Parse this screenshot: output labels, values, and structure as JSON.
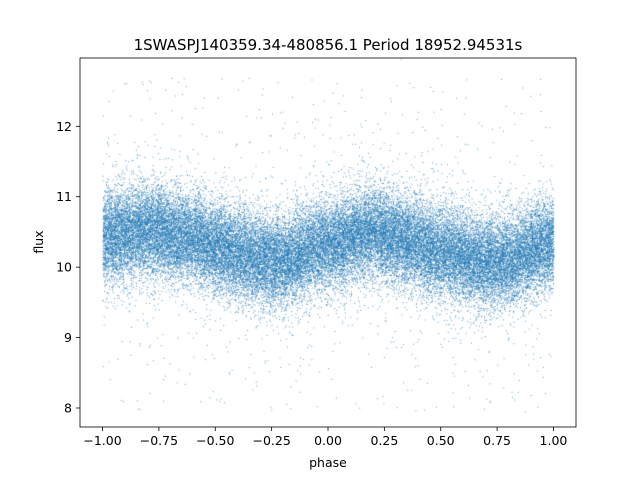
{
  "chart_data": {
    "type": "scatter",
    "title": "1SWASPJ140359.34-480856.1 Period 18952.94531s",
    "xlabel": "phase",
    "ylabel": "flux",
    "xlim": [
      -1.1,
      1.1
    ],
    "ylim": [
      7.73,
      12.97
    ],
    "xticks": [
      -1.0,
      -0.75,
      -0.5,
      -0.25,
      0.0,
      0.25,
      0.5,
      0.75,
      1.0
    ],
    "xtick_labels": [
      "−1.00",
      "−0.75",
      "−0.50",
      "−0.25",
      "0.00",
      "0.25",
      "0.50",
      "0.75",
      "1.00"
    ],
    "yticks": [
      8,
      9,
      10,
      11,
      12
    ],
    "ytick_labels": [
      "8",
      "9",
      "10",
      "11",
      "12"
    ],
    "grid": false,
    "marker_color": "#1f77b4",
    "profile": {
      "description_of_trend": "folded light curve, double-humped over phase -1 to 1",
      "phase": [
        -1.0,
        -0.8,
        -0.6,
        -0.5,
        -0.3,
        -0.2,
        0.0,
        0.2,
        0.3,
        0.5,
        0.7,
        0.8,
        1.0
      ],
      "mean_flux": [
        10.42,
        10.52,
        10.42,
        10.28,
        10.12,
        10.1,
        10.33,
        10.5,
        10.42,
        10.22,
        10.08,
        10.1,
        10.35
      ]
    },
    "scatter_sigma": 0.32,
    "outlier_range": [
      7.95,
      12.7
    ]
  }
}
